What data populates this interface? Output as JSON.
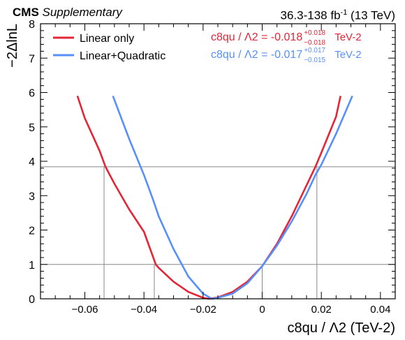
{
  "header": {
    "experiment": "CMS",
    "tag": "Supplementary",
    "lumi_main": "36.3-138 fb",
    "lumi_exp": "-1",
    "energy": "(13 TeV)"
  },
  "chart_data": {
    "type": "line",
    "xlabel": "c8qu / Λ2 (TeV-2)",
    "ylabel": "−2ΔlnL",
    "xlim": [
      -0.075,
      0.045
    ],
    "ylim": [
      0,
      8
    ],
    "xticks": [
      -0.06,
      -0.04,
      -0.02,
      0,
      0.02,
      0.04
    ],
    "xtick_labels": [
      "−0.06",
      "−0.04",
      "−0.02",
      "0",
      "0.02",
      "0.04"
    ],
    "yticks": [
      0,
      1,
      2,
      3,
      4,
      5,
      6,
      7,
      8
    ],
    "ytick_labels": [
      "0",
      "1",
      "2",
      "3",
      "4",
      "5",
      "6",
      "7",
      "8"
    ],
    "hlines": [
      1,
      3.84
    ],
    "legend_position": "top-left",
    "series": [
      {
        "name": "Linear only",
        "color": "#e42536",
        "x": [
          -0.0625,
          -0.06,
          -0.055,
          -0.053,
          -0.05,
          -0.045,
          -0.04,
          -0.036,
          -0.035,
          -0.03,
          -0.025,
          -0.02,
          -0.018,
          -0.015,
          -0.01,
          -0.005,
          0.0,
          0.005,
          0.01,
          0.015,
          0.018,
          0.02,
          0.025,
          0.0265
        ],
        "y": [
          5.9,
          5.25,
          4.3,
          3.84,
          3.35,
          2.6,
          1.95,
          1.0,
          0.9,
          0.5,
          0.2,
          0.03,
          0.0,
          0.04,
          0.2,
          0.5,
          0.95,
          1.6,
          2.4,
          3.3,
          3.84,
          4.25,
          5.3,
          5.9
        ]
      },
      {
        "name": "Linear+Quadratic",
        "color": "#5790fc",
        "x": [
          -0.0505,
          -0.045,
          -0.04,
          -0.037,
          -0.035,
          -0.03,
          -0.025,
          -0.02,
          -0.017,
          -0.015,
          -0.01,
          -0.005,
          0.0,
          0.005,
          0.01,
          0.015,
          0.018,
          0.02,
          0.025,
          0.0305
        ],
        "y": [
          5.9,
          4.65,
          3.6,
          2.9,
          2.4,
          1.45,
          0.65,
          0.15,
          0.0,
          0.03,
          0.15,
          0.45,
          0.95,
          1.55,
          2.25,
          3.05,
          3.6,
          3.9,
          4.8,
          5.9
        ]
      }
    ],
    "interval_lines": {
      "x": [
        -0.0535,
        -0.0365,
        0.0,
        0.0185
      ],
      "y": [
        3.84,
        1.0,
        1.0,
        3.84
      ]
    },
    "annotations": [
      {
        "text_main": "c8qu / Λ2 = -0.018",
        "sup": "+0.018",
        "sub": "−0.018",
        "unit": "TeV-2",
        "color": "#e42536"
      },
      {
        "text_main": "c8qu / Λ2 = -0.017",
        "sup": "+0.017",
        "sub": "−0.015",
        "unit": "TeV-2",
        "color": "#5790fc"
      }
    ]
  }
}
